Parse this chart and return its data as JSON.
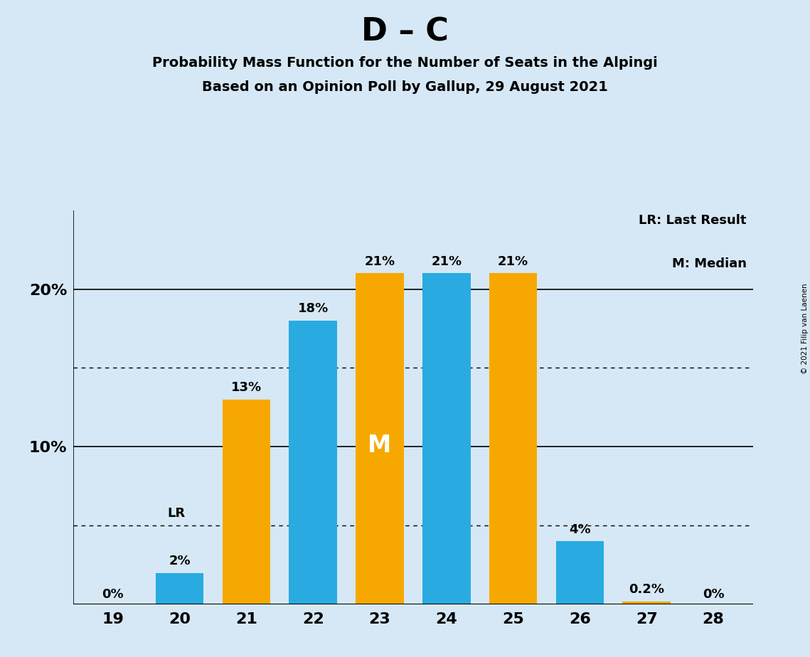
{
  "title_main": "D – C",
  "title_sub1": "Probability Mass Function for the Number of Seats in the Alpingi",
  "title_sub2": "Based on an Opinion Poll by Gallup, 29 August 2021",
  "copyright": "© 2021 Filip van Laenen",
  "seats": [
    19,
    20,
    21,
    22,
    23,
    24,
    25,
    26,
    27,
    28
  ],
  "values": [
    0.0,
    2.0,
    13.0,
    18.0,
    21.0,
    21.0,
    21.0,
    4.0,
    0.2,
    0.0
  ],
  "bar_colors": [
    "#29ABE2",
    "#29ABE2",
    "#F7A800",
    "#29ABE2",
    "#F7A800",
    "#29ABE2",
    "#F7A800",
    "#29ABE2",
    "#F7A800",
    "#F7A800"
  ],
  "bar_labels": [
    "0%",
    "2%",
    "13%",
    "18%",
    "21%",
    "21%",
    "21%",
    "4%",
    "0.2%",
    "0%"
  ],
  "label_offsets": [
    0.3,
    0.3,
    0.3,
    0.3,
    0.3,
    0.3,
    0.3,
    0.3,
    0.3,
    0.3
  ],
  "blue_color": "#29ABE2",
  "orange_color": "#F7A800",
  "background_color": "#D6E8F5",
  "median_seat_idx": 4,
  "lr_seat_idx": 1,
  "lr_value": 5.0,
  "dotted_lines": [
    5.0,
    15.0
  ],
  "solid_lines": [
    10.0,
    20.0
  ],
  "ylim": [
    0,
    25
  ],
  "yticks": [
    10,
    20
  ],
  "ytick_labels": [
    "10%",
    "20%"
  ],
  "legend_line1": "LR: Last Result",
  "legend_line2": "M: Median",
  "bar_width": 0.72
}
